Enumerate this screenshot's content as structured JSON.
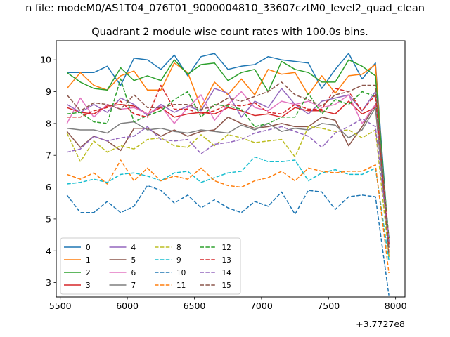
{
  "figure": {
    "suptitle": "n file: modeM0/AS1T04_076T01_9000004810_33607cztM0_level2_quad_clean"
  },
  "chart_data": {
    "type": "line",
    "title": "Quadrant 2 module wise count rates with 100.0s bins.",
    "xlabel": "",
    "ylabel": "",
    "x_offset_label": "+3.7727e8",
    "xlim": [
      5470,
      8070
    ],
    "ylim": [
      2.55,
      10.6
    ],
    "x_ticks": [
      5500,
      6000,
      6500,
      7000,
      7500,
      8000
    ],
    "x_tick_labels": [
      "5500",
      "6000",
      "6500",
      "7000",
      "7500",
      "8000"
    ],
    "y_ticks": [
      3,
      4,
      5,
      6,
      7,
      8,
      9,
      10
    ],
    "y_tick_labels": [
      "3",
      "4",
      "5",
      "6",
      "7",
      "8",
      "9",
      "10"
    ],
    "grid": false,
    "legend": {
      "position": "lower-left",
      "columns": 4
    },
    "x": [
      5550,
      5650,
      5750,
      5850,
      5950,
      6050,
      6150,
      6250,
      6350,
      6450,
      6550,
      6650,
      6750,
      6850,
      6950,
      7050,
      7150,
      7250,
      7350,
      7450,
      7550,
      7650,
      7750,
      7850,
      7950
    ],
    "series": [
      {
        "name": "0",
        "color": "#1f77b4",
        "dash": "solid",
        "values": [
          9.6,
          9.6,
          9.6,
          9.8,
          9.2,
          10.05,
          10.0,
          9.7,
          10.15,
          9.5,
          10.1,
          10.2,
          9.7,
          9.8,
          9.85,
          10.1,
          10.0,
          9.95,
          9.9,
          9.1,
          9.7,
          10.2,
          9.4,
          9.9,
          4.2
        ]
      },
      {
        "name": "1",
        "color": "#ff7f0e",
        "dash": "solid",
        "values": [
          9.1,
          9.6,
          9.2,
          9.05,
          9.5,
          9.65,
          9.05,
          9.05,
          9.9,
          9.6,
          8.5,
          9.3,
          8.9,
          9.4,
          8.9,
          9.7,
          9.55,
          9.6,
          8.9,
          9.5,
          8.95,
          9.5,
          9.55,
          9.85,
          3.8
        ]
      },
      {
        "name": "2",
        "color": "#2ca02c",
        "dash": "solid",
        "values": [
          9.6,
          9.3,
          9.1,
          9.05,
          9.75,
          9.35,
          9.5,
          9.35,
          10.0,
          9.55,
          9.85,
          9.9,
          9.35,
          9.6,
          9.7,
          9.0,
          9.95,
          9.7,
          9.6,
          9.3,
          9.3,
          10.0,
          9.8,
          9.5,
          4.3
        ]
      },
      {
        "name": "3",
        "color": "#d62728",
        "dash": "solid",
        "values": [
          8.5,
          8.35,
          8.3,
          8.55,
          8.6,
          8.55,
          8.3,
          8.5,
          8.2,
          8.3,
          8.35,
          8.3,
          8.5,
          8.4,
          8.25,
          8.3,
          8.2,
          8.5,
          8.4,
          8.4,
          8.3,
          8.7,
          8.3,
          8.5,
          4.1
        ]
      },
      {
        "name": "4",
        "color": "#9467bd",
        "dash": "solid",
        "values": [
          8.6,
          8.35,
          8.6,
          8.35,
          8.8,
          8.6,
          8.25,
          8.6,
          8.35,
          8.55,
          8.4,
          9.1,
          8.95,
          8.2,
          8.7,
          8.5,
          9.1,
          8.6,
          8.3,
          8.7,
          8.8,
          8.9,
          8.4,
          9.0,
          4.4
        ]
      },
      {
        "name": "5",
        "color": "#8c564b",
        "dash": "solid",
        "values": [
          7.75,
          7.25,
          7.6,
          7.45,
          7.15,
          7.85,
          7.85,
          7.6,
          7.8,
          7.6,
          7.75,
          7.8,
          8.2,
          8.0,
          7.85,
          7.9,
          8.0,
          7.9,
          7.9,
          8.2,
          8.1,
          7.3,
          7.9,
          8.6,
          4.2
        ]
      },
      {
        "name": "6",
        "color": "#e377c2",
        "dash": "solid",
        "values": [
          8.0,
          8.8,
          8.2,
          8.6,
          8.45,
          8.5,
          8.3,
          8.55,
          8.0,
          8.5,
          8.9,
          8.1,
          8.6,
          9.0,
          8.5,
          8.4,
          8.7,
          8.6,
          8.7,
          8.5,
          8.6,
          8.9,
          8.0,
          8.6,
          4.4
        ]
      },
      {
        "name": "7",
        "color": "#7f7f7f",
        "dash": "solid",
        "values": [
          7.85,
          7.8,
          7.8,
          7.7,
          8.0,
          8.05,
          7.8,
          7.85,
          7.75,
          7.7,
          7.8,
          7.75,
          7.7,
          7.95,
          7.8,
          8.0,
          7.75,
          7.85,
          7.8,
          8.0,
          7.95,
          7.55,
          7.8,
          8.5,
          4.1
        ]
      },
      {
        "name": "8",
        "color": "#bcbd22",
        "dash": "dashed",
        "values": [
          7.7,
          6.8,
          7.45,
          7.1,
          7.3,
          7.2,
          7.5,
          7.55,
          7.3,
          7.25,
          7.65,
          7.3,
          7.65,
          7.55,
          7.4,
          7.45,
          7.5,
          6.95,
          7.9,
          7.85,
          7.75,
          7.8,
          7.55,
          7.8,
          3.85
        ]
      },
      {
        "name": "9",
        "color": "#17becf",
        "dash": "dashed",
        "values": [
          6.1,
          6.15,
          6.25,
          6.15,
          6.4,
          6.45,
          6.35,
          6.2,
          6.45,
          6.5,
          6.15,
          6.3,
          6.45,
          6.5,
          6.95,
          6.8,
          6.8,
          6.85,
          6.2,
          6.45,
          6.55,
          6.4,
          6.4,
          6.6,
          3.7
        ]
      },
      {
        "name": "10",
        "color": "#1f77b4",
        "dash": "dashed",
        "values": [
          5.75,
          5.2,
          5.2,
          5.55,
          5.2,
          5.4,
          6.05,
          5.9,
          5.5,
          5.75,
          5.35,
          5.6,
          5.35,
          5.2,
          5.55,
          5.4,
          5.85,
          5.15,
          5.9,
          5.85,
          5.3,
          5.7,
          5.75,
          5.7,
          2.6
        ]
      },
      {
        "name": "11",
        "color": "#ff7f0e",
        "dash": "dashed",
        "values": [
          6.4,
          6.25,
          6.45,
          6.1,
          6.85,
          6.2,
          6.6,
          6.2,
          6.35,
          6.25,
          6.6,
          6.2,
          6.05,
          6.0,
          6.2,
          6.3,
          6.5,
          6.2,
          6.6,
          6.5,
          6.45,
          6.5,
          6.5,
          6.7,
          3.3
        ]
      },
      {
        "name": "12",
        "color": "#2ca02c",
        "dash": "dashed",
        "values": [
          8.3,
          8.35,
          8.05,
          8.0,
          9.4,
          8.05,
          8.25,
          8.4,
          8.75,
          9.0,
          8.2,
          8.6,
          8.55,
          8.45,
          7.9,
          8.0,
          8.2,
          8.2,
          8.95,
          8.3,
          8.75,
          8.6,
          9.0,
          8.85,
          4.4
        ]
      },
      {
        "name": "13",
        "color": "#d62728",
        "dash": "dashed",
        "values": [
          8.2,
          8.2,
          8.4,
          8.5,
          8.7,
          8.3,
          8.2,
          9.2,
          8.45,
          8.45,
          8.3,
          8.4,
          8.6,
          8.55,
          8.65,
          8.35,
          8.3,
          8.6,
          8.45,
          8.45,
          9.1,
          9.0,
          8.4,
          8.9,
          4.2
        ]
      },
      {
        "name": "14",
        "color": "#9467bd",
        "dash": "dashed",
        "values": [
          7.1,
          7.2,
          7.6,
          7.45,
          7.55,
          7.6,
          7.9,
          7.5,
          7.45,
          7.5,
          7.05,
          7.35,
          7.4,
          7.5,
          7.7,
          7.8,
          7.9,
          7.75,
          7.6,
          7.25,
          7.7,
          7.9,
          8.15,
          7.9,
          4.3
        ]
      },
      {
        "name": "15",
        "color": "#8c564b",
        "dash": "dashed",
        "values": [
          8.9,
          8.4,
          8.65,
          8.6,
          8.45,
          8.9,
          8.5,
          8.5,
          8.6,
          8.6,
          8.45,
          8.55,
          8.8,
          8.7,
          8.85,
          9.0,
          9.3,
          8.9,
          8.75,
          8.55,
          8.9,
          9.0,
          9.2,
          9.2,
          3.9
        ]
      }
    ]
  }
}
